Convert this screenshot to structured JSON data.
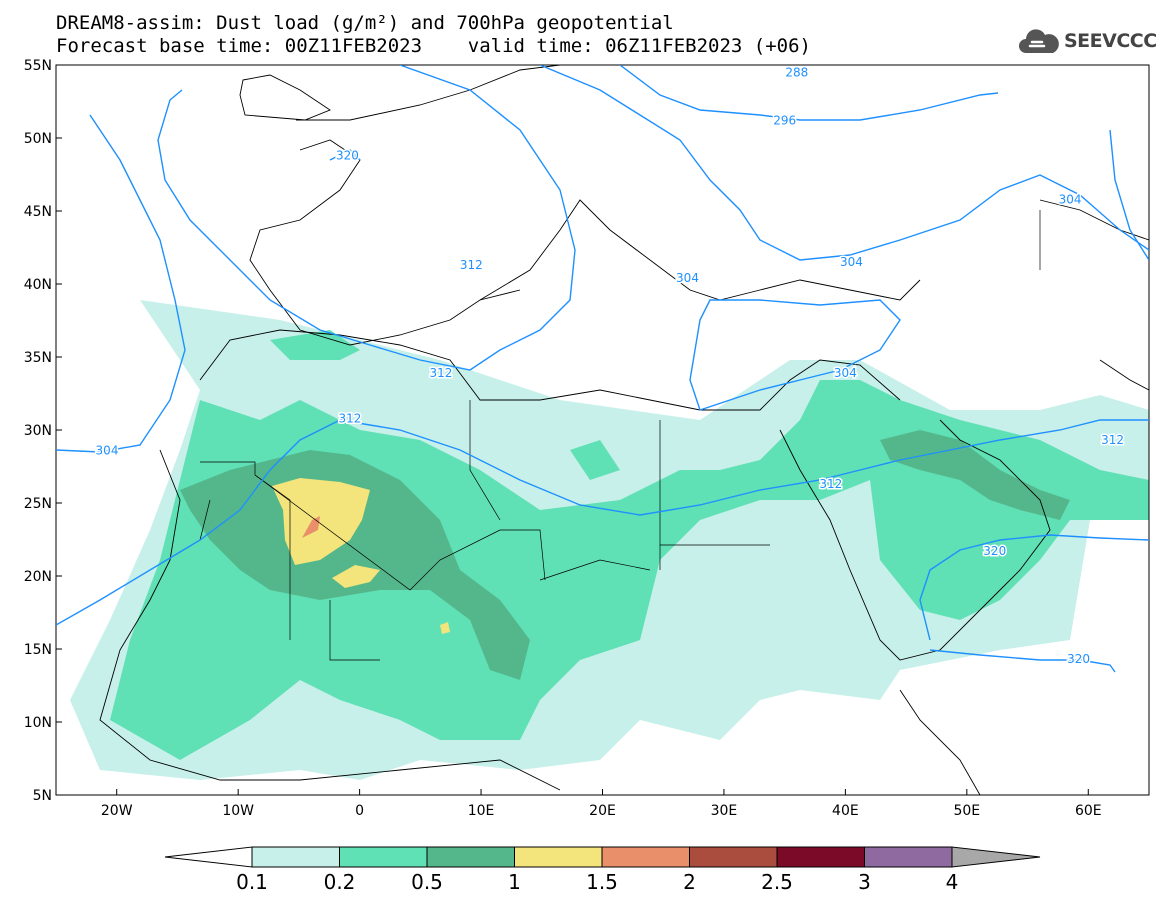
{
  "title_line1": "DREAM8-assim: Dust load (g/m²) and 700hPa geopotential",
  "title_line2": "Forecast base time: 00Z11FEB2023    valid time: 06Z11FEB2023 (+06)",
  "logo": {
    "text": "SEEVCCC",
    "icon": "cloud-icon"
  },
  "map": {
    "lon_range": [
      -25,
      65
    ],
    "lat_range": [
      5,
      55
    ],
    "lat_labels": [
      {
        "v": 55,
        "t": "55N"
      },
      {
        "v": 50,
        "t": "50N"
      },
      {
        "v": 45,
        "t": "45N"
      },
      {
        "v": 40,
        "t": "40N"
      },
      {
        "v": 35,
        "t": "35N"
      },
      {
        "v": 30,
        "t": "30N"
      },
      {
        "v": 25,
        "t": "25N"
      },
      {
        "v": 20,
        "t": "20N"
      },
      {
        "v": 15,
        "t": "15N"
      },
      {
        "v": 10,
        "t": "10N"
      },
      {
        "v": 5,
        "t": "5N"
      }
    ],
    "lon_labels": [
      {
        "v": -20,
        "t": "20W"
      },
      {
        "v": -10,
        "t": "10W"
      },
      {
        "v": 0,
        "t": "0"
      },
      {
        "v": 10,
        "t": "10E"
      },
      {
        "v": 20,
        "t": "20E"
      },
      {
        "v": 30,
        "t": "30E"
      },
      {
        "v": 40,
        "t": "40E"
      },
      {
        "v": 50,
        "t": "50E"
      },
      {
        "v": 60,
        "t": "60E"
      }
    ],
    "contour_labels": [
      {
        "t": "288",
        "lon": 36,
        "lat": 54.5
      },
      {
        "t": "296",
        "lon": 35,
        "lat": 51.2
      },
      {
        "t": "320",
        "lon": -1,
        "lat": 48.8
      },
      {
        "t": "304",
        "lon": 58.5,
        "lat": 45.8
      },
      {
        "t": "304",
        "lon": 40.5,
        "lat": 41.5
      },
      {
        "t": "312",
        "lon": 9.2,
        "lat": 41.3
      },
      {
        "t": "304",
        "lon": 27,
        "lat": 40.4
      },
      {
        "t": "312",
        "lon": 6.7,
        "lat": 33.9
      },
      {
        "t": "304",
        "lon": 40,
        "lat": 33.9
      },
      {
        "t": "312",
        "lon": -0.8,
        "lat": 30.8
      },
      {
        "t": "304",
        "lon": -20.8,
        "lat": 28.6
      },
      {
        "t": "312",
        "lon": 62,
        "lat": 29.3
      },
      {
        "t": "312",
        "lon": 38.8,
        "lat": 26.3
      },
      {
        "t": "320",
        "lon": 52.3,
        "lat": 21.7
      },
      {
        "t": "320",
        "lon": 59.2,
        "lat": 14.3
      }
    ]
  },
  "colorbar": {
    "colors": [
      "#c6f0e9",
      "#5fe0b5",
      "#54b78b",
      "#f3e47c",
      "#e9906b",
      "#ab4d3e",
      "#7b0a28",
      "#8e6aa0"
    ],
    "over_color": "#a8a8a8",
    "labels": [
      "0.1",
      "0.2",
      "0.5",
      "1",
      "1.5",
      "2",
      "2.5",
      "3",
      "4"
    ]
  }
}
